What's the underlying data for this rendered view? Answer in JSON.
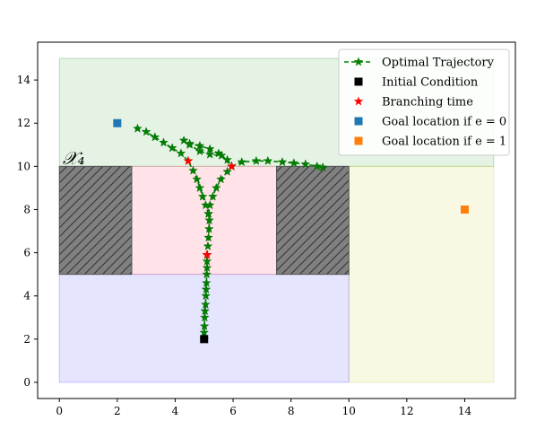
{
  "chart_data": {
    "type": "scatter",
    "xlim": [
      -0.75,
      15.75
    ],
    "ylim": [
      -0.75,
      15.75
    ],
    "xticks": [
      0,
      2,
      4,
      6,
      8,
      10,
      12,
      14
    ],
    "yticks": [
      0,
      2,
      4,
      6,
      8,
      10,
      12,
      14
    ],
    "grid": false,
    "legend_position": "top-right",
    "regions": [
      {
        "name": "goal-region-upper",
        "x": [
          0,
          15
        ],
        "y": [
          10,
          15
        ],
        "color": "#2ca02c",
        "opacity": 0.12
      },
      {
        "name": "goal-region-right",
        "x": [
          10,
          15
        ],
        "y": [
          0,
          10
        ],
        "color": "#cdcd44",
        "opacity": 0.15
      },
      {
        "name": "start-region",
        "x": [
          0,
          10
        ],
        "y": [
          0,
          5
        ],
        "color": "#5050ff",
        "opacity": 0.15
      },
      {
        "name": "middle-region",
        "x": [
          2.5,
          7.5
        ],
        "y": [
          5,
          10
        ],
        "color": "#ff6680",
        "opacity": 0.18
      }
    ],
    "obstacles": [
      {
        "name": "obstacle-left",
        "x": [
          0,
          2.5
        ],
        "y": [
          5,
          10
        ],
        "color": "#808080"
      },
      {
        "name": "obstacle-right",
        "x": [
          7.5,
          10
        ],
        "y": [
          5,
          10
        ],
        "color": "#808080"
      }
    ],
    "region_label": "𝒳₄",
    "region_label_pos": [
      0.1,
      10.1
    ],
    "trajectories": [
      {
        "name": "trunk",
        "points": [
          [
            5.0,
            2.0
          ],
          [
            5.0,
            2.3
          ],
          [
            5.01,
            2.6
          ],
          [
            5.02,
            3.0
          ],
          [
            5.03,
            3.3
          ],
          [
            5.05,
            3.6
          ],
          [
            5.06,
            4.0
          ],
          [
            5.07,
            4.3
          ],
          [
            5.08,
            4.6
          ],
          [
            5.09,
            5.0
          ],
          [
            5.1,
            5.3
          ],
          [
            5.1,
            5.6
          ],
          [
            5.1,
            5.9
          ]
        ]
      },
      {
        "name": "upper-branches-stem",
        "points": [
          [
            5.1,
            5.9
          ],
          [
            5.13,
            6.3
          ],
          [
            5.15,
            6.7
          ],
          [
            5.17,
            7.1
          ],
          [
            5.18,
            7.5
          ],
          [
            5.15,
            7.8
          ]
        ]
      },
      {
        "name": "branch-left-up",
        "points": [
          [
            5.15,
            7.8
          ],
          [
            5.05,
            8.2
          ],
          [
            4.95,
            8.6
          ],
          [
            4.85,
            9.0
          ],
          [
            4.75,
            9.4
          ],
          [
            4.62,
            9.8
          ],
          [
            4.45,
            10.25
          ],
          [
            4.2,
            10.6
          ],
          [
            3.9,
            10.85
          ],
          [
            3.6,
            11.1
          ],
          [
            3.3,
            11.35
          ],
          [
            3.0,
            11.6
          ],
          [
            2.7,
            11.75
          ]
        ]
      },
      {
        "name": "branch-middle",
        "points": [
          [
            5.15,
            7.8
          ],
          [
            5.2,
            8.2
          ],
          [
            5.3,
            8.6
          ],
          [
            5.42,
            9.0
          ],
          [
            5.58,
            9.4
          ],
          [
            5.8,
            9.75
          ],
          [
            5.95,
            10.0
          ],
          [
            5.8,
            10.3
          ],
          [
            5.5,
            10.6
          ],
          [
            5.2,
            10.8
          ],
          [
            4.85,
            10.95
          ],
          [
            4.5,
            11.05
          ],
          [
            4.3,
            11.2
          ],
          [
            4.5,
            11.0
          ],
          [
            4.85,
            10.7
          ],
          [
            5.2,
            10.55
          ],
          [
            5.6,
            10.5
          ],
          [
            5.95,
            10.0
          ]
        ]
      },
      {
        "name": "branch-right",
        "points": [
          [
            5.95,
            10.0
          ],
          [
            6.3,
            10.2
          ],
          [
            6.8,
            10.25
          ],
          [
            7.2,
            10.25
          ],
          [
            7.7,
            10.2
          ],
          [
            8.1,
            10.15
          ],
          [
            8.5,
            10.1
          ],
          [
            8.9,
            10.0
          ],
          [
            9.1,
            9.95
          ]
        ]
      }
    ],
    "branch_points": [
      [
        5.1,
        5.9
      ],
      [
        4.45,
        10.25
      ],
      [
        5.95,
        10.0
      ]
    ],
    "initial_condition": [
      5.0,
      2.0
    ],
    "goal_e0": [
      2.0,
      12.0
    ],
    "goal_e1": [
      14.0,
      8.0
    ],
    "series": [
      {
        "name": "Optimal Trajectory",
        "color": "#008000",
        "marker": "star",
        "style": "dashed"
      },
      {
        "name": "Initial Condition",
        "color": "#000000",
        "marker": "square"
      },
      {
        "name": "Branching time",
        "color": "#ff0000",
        "marker": "star"
      },
      {
        "name": "Goal location if e = 0",
        "color": "#1f77b4",
        "marker": "square"
      },
      {
        "name": "Goal location if e = 1",
        "color": "#ff7f0e",
        "marker": "square"
      }
    ]
  }
}
